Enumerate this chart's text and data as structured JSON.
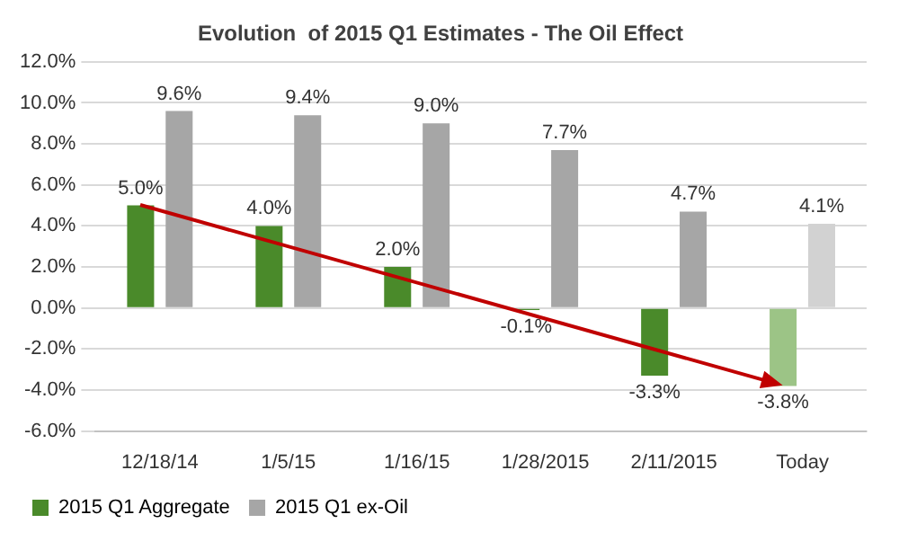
{
  "chart_data": {
    "type": "bar",
    "title": "Evolution  of 2015 Q1 Estimates - The Oil Effect",
    "categories": [
      "12/18/14",
      "1/5/15",
      "1/16/15",
      "1/28/2015",
      "2/11/2015",
      "Today"
    ],
    "series": [
      {
        "name": "2015 Q1 Aggregate",
        "color": "#4a8a2a",
        "colors": [
          "#4a8a2a",
          "#4a8a2a",
          "#4a8a2a",
          "#4a8a2a",
          "#4a8a2a",
          "#9cc486"
        ],
        "values": [
          5.0,
          4.0,
          2.0,
          -0.1,
          -3.3,
          -3.8
        ],
        "value_labels": [
          "5.0%",
          "4.0%",
          "2.0%",
          "-0.1%",
          "-3.3%",
          "-3.8%"
        ]
      },
      {
        "name": "2015 Q1 ex-Oil",
        "color": "#a6a6a6",
        "colors": [
          "#a6a6a6",
          "#a6a6a6",
          "#a6a6a6",
          "#a6a6a6",
          "#a6a6a6",
          "#d2d2d2"
        ],
        "values": [
          9.6,
          9.4,
          9.0,
          7.7,
          4.7,
          4.1
        ],
        "value_labels": [
          "9.6%",
          "9.4%",
          "9.0%",
          "7.7%",
          "4.7%",
          "4.1%"
        ]
      }
    ],
    "ylim": [
      -6,
      12
    ],
    "yticks": [
      {
        "value": -6,
        "label": "-6.0%"
      },
      {
        "value": -4,
        "label": "-4.0%"
      },
      {
        "value": -2,
        "label": "-2.0%"
      },
      {
        "value": 0,
        "label": "0.0%"
      },
      {
        "value": 2,
        "label": "2.0%"
      },
      {
        "value": 4,
        "label": "4.0%"
      },
      {
        "value": 6,
        "label": "6.0%"
      },
      {
        "value": 8,
        "label": "8.0%"
      },
      {
        "value": 10,
        "label": "10.0%"
      },
      {
        "value": 12,
        "label": "12.0%"
      }
    ],
    "grid": "y",
    "legend": "bottom left"
  }
}
